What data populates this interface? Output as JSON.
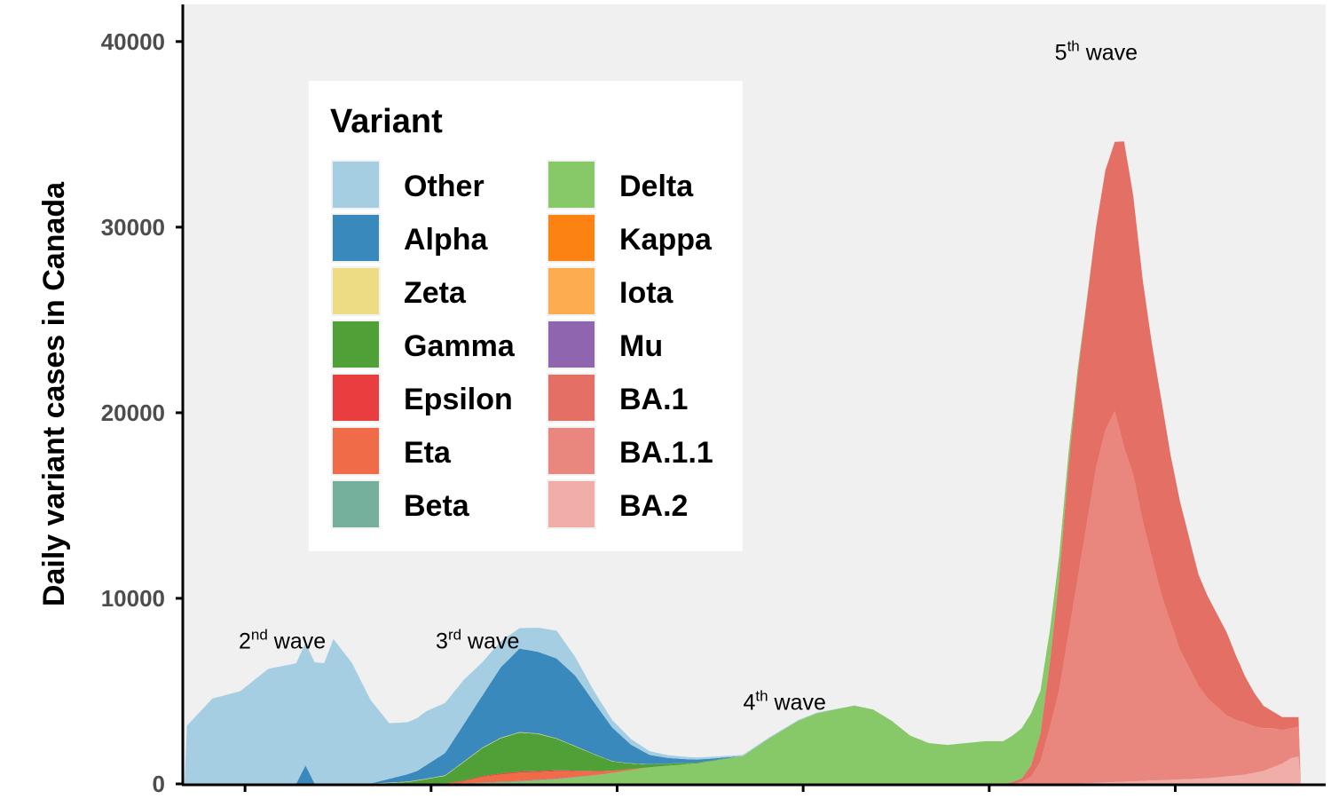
{
  "chart_data": {
    "type": "area",
    "stacked": true,
    "title": "",
    "xlabel": "",
    "ylabel": "Daily variant cases in Canada",
    "ylim": [
      0,
      42000
    ],
    "yticks": [
      0,
      10000,
      20000,
      30000,
      40000
    ],
    "ytick_labels": [
      "0",
      "10000",
      "20000",
      "30000",
      "40000"
    ],
    "x_index_range": [
      0,
      120
    ],
    "xticks_index": [
      6.5,
      26.5,
      46.5,
      66.5,
      86.5,
      106.5
    ],
    "grid": false,
    "background": "#f0f0f0",
    "legend": {
      "title": "Variant",
      "placement": "top-left",
      "columns": 2,
      "entries": [
        {
          "label": "Other",
          "color": "#a6cee3"
        },
        {
          "label": "Alpha",
          "color": "#3a89bd"
        },
        {
          "label": "Zeta",
          "color": "#eddc83"
        },
        {
          "label": "Gamma",
          "color": "#50a038"
        },
        {
          "label": "Epsilon",
          "color": "#e83e3f"
        },
        {
          "label": "Eta",
          "color": "#f06b47"
        },
        {
          "label": "Beta",
          "color": "#74b09b"
        },
        {
          "label": "Delta",
          "color": "#87c868"
        },
        {
          "label": "Kappa",
          "color": "#fc8212"
        },
        {
          "label": "Iota",
          "color": "#fdac4f"
        },
        {
          "label": "Mu",
          "color": "#8e65ae"
        },
        {
          "label": "BA.1",
          "color": "#e46f65"
        },
        {
          "label": "BA.1.1",
          "color": "#e9877e"
        },
        {
          "label": "BA.2",
          "color": "#f1aea8"
        }
      ]
    },
    "series": [
      {
        "name": "Other",
        "color": "#a6cee3",
        "x": [
          0,
          3,
          6,
          9,
          12,
          13,
          15,
          16,
          18,
          20,
          22,
          24,
          26,
          27,
          28,
          30,
          32,
          34,
          36,
          38,
          40,
          42,
          44,
          46,
          48,
          50,
          52,
          54,
          56,
          58,
          60,
          65,
          70,
          75
        ],
        "values": [
          3000,
          4600,
          5000,
          6200,
          6500,
          6600,
          6500,
          7800,
          6500,
          4500,
          3000,
          2800,
          2900,
          2800,
          2700,
          2400,
          1800,
          1400,
          1100,
          1300,
          1500,
          1000,
          600,
          400,
          300,
          200,
          150,
          120,
          100,
          80,
          60,
          40,
          20,
          0
        ]
      },
      {
        "name": "Alpha",
        "color": "#3a89bd",
        "x": [
          12,
          13,
          14,
          15,
          16,
          20,
          25,
          28,
          30,
          32,
          34,
          36,
          38,
          40,
          42,
          44,
          46,
          48,
          50,
          52,
          54,
          56,
          58,
          60
        ],
        "values": [
          0,
          1000,
          0,
          0,
          0,
          0,
          500,
          1200,
          2000,
          2800,
          3800,
          4500,
          4400,
          4300,
          3800,
          2800,
          1800,
          1000,
          500,
          300,
          200,
          120,
          60,
          0
        ]
      },
      {
        "name": "Zeta",
        "color": "#eddc83",
        "x": [
          14,
          20,
          30,
          40,
          50,
          55
        ],
        "values": [
          0,
          20,
          30,
          25,
          10,
          0
        ]
      },
      {
        "name": "Gamma",
        "color": "#50a038",
        "x": [
          20,
          24,
          28,
          30,
          32,
          34,
          36,
          38,
          40,
          42,
          44,
          46,
          48,
          50,
          55,
          60
        ],
        "values": [
          0,
          100,
          400,
          1000,
          1500,
          1900,
          2100,
          2000,
          1700,
          1300,
          900,
          500,
          300,
          150,
          50,
          0
        ]
      },
      {
        "name": "Epsilon",
        "color": "#e83e3f",
        "x": [
          25,
          30,
          35,
          40,
          45,
          50
        ],
        "values": [
          0,
          40,
          60,
          50,
          20,
          0
        ]
      },
      {
        "name": "Eta",
        "color": "#f06b47",
        "x": [
          28,
          30,
          32,
          34,
          36,
          38,
          40,
          42,
          44,
          46,
          48,
          50
        ],
        "values": [
          0,
          100,
          300,
          400,
          450,
          420,
          400,
          300,
          200,
          100,
          50,
          0
        ]
      },
      {
        "name": "Beta",
        "color": "#74b09b",
        "x": [
          28,
          32,
          36,
          40,
          44,
          48
        ],
        "values": [
          0,
          40,
          60,
          50,
          30,
          0
        ]
      },
      {
        "name": "Delta",
        "color": "#87c868",
        "x": [
          30,
          35,
          40,
          45,
          50,
          55,
          60,
          63,
          66,
          68,
          70,
          72,
          74,
          76,
          78,
          80,
          82,
          84,
          86,
          88,
          89,
          90,
          91,
          92,
          93,
          94,
          95,
          96,
          97,
          98,
          100
        ],
        "values": [
          0,
          50,
          200,
          500,
          900,
          1100,
          1500,
          2500,
          3400,
          3800,
          4000,
          4200,
          4000,
          3400,
          2600,
          2200,
          2100,
          2200,
          2300,
          2300,
          2500,
          2700,
          2800,
          2300,
          1700,
          1200,
          700,
          300,
          100,
          0,
          0
        ]
      },
      {
        "name": "Kappa",
        "color": "#fc8212",
        "x": [
          36,
          40,
          44
        ],
        "values": [
          0,
          20,
          0
        ]
      },
      {
        "name": "Iota",
        "color": "#fdac4f",
        "x": [
          25,
          35,
          45
        ],
        "values": [
          0,
          20,
          0
        ]
      },
      {
        "name": "Mu",
        "color": "#8e65ae",
        "x": [
          60,
          70,
          80
        ],
        "values": [
          0,
          20,
          0
        ]
      },
      {
        "name": "BA.1",
        "color": "#e46f65",
        "x": [
          88,
          90,
          91,
          92,
          93,
          94,
          95,
          96,
          97,
          98,
          99,
          100,
          101,
          102,
          103,
          104,
          105,
          106,
          107,
          108,
          109,
          110,
          111,
          112,
          113,
          114,
          115,
          116,
          117,
          118,
          119,
          120
        ],
        "values": [
          0,
          200,
          600,
          1500,
          3500,
          6000,
          9000,
          11000,
          12000,
          13000,
          14000,
          14500,
          16500,
          15000,
          13000,
          11500,
          10500,
          9000,
          8000,
          7000,
          6000,
          5500,
          5000,
          4500,
          3500,
          2500,
          1800,
          1200,
          900,
          700,
          600,
          500
        ]
      },
      {
        "name": "BA.1.1",
        "color": "#e9877e",
        "x": [
          89,
          90,
          91,
          92,
          93,
          94,
          95,
          96,
          97,
          98,
          99,
          100,
          101,
          102,
          103,
          104,
          105,
          106,
          107,
          108,
          109,
          110,
          111,
          112,
          113,
          114,
          115,
          116,
          117,
          118,
          119,
          120
        ],
        "values": [
          0,
          100,
          400,
          1200,
          3000,
          5000,
          8000,
          11000,
          14000,
          17000,
          19000,
          20000,
          18000,
          16500,
          14000,
          12000,
          10000,
          8500,
          7000,
          6000,
          5000,
          4300,
          3800,
          3300,
          3000,
          2800,
          2500,
          2300,
          2100,
          1800,
          1600,
          1600
        ]
      },
      {
        "name": "BA.2",
        "color": "#f1aea8",
        "x": [
          95,
          100,
          105,
          110,
          112,
          114,
          116,
          117,
          118,
          119,
          120
        ],
        "values": [
          0,
          100,
          200,
          300,
          400,
          500,
          700,
          900,
          1100,
          1400,
          1500
        ]
      }
    ],
    "annotations": [
      {
        "base": "2",
        "sup": "nd",
        "text": " wave",
        "x": 10.5,
        "y": 7300
      },
      {
        "base": "3",
        "sup": "rd",
        "text": " wave",
        "x": 31.5,
        "y": 7300
      },
      {
        "base": "4",
        "sup": "th",
        "text": " wave",
        "x": 64.5,
        "y": 4000
      },
      {
        "base": "5",
        "sup": "th",
        "text": " wave",
        "x": 98,
        "y": 39000
      }
    ]
  }
}
